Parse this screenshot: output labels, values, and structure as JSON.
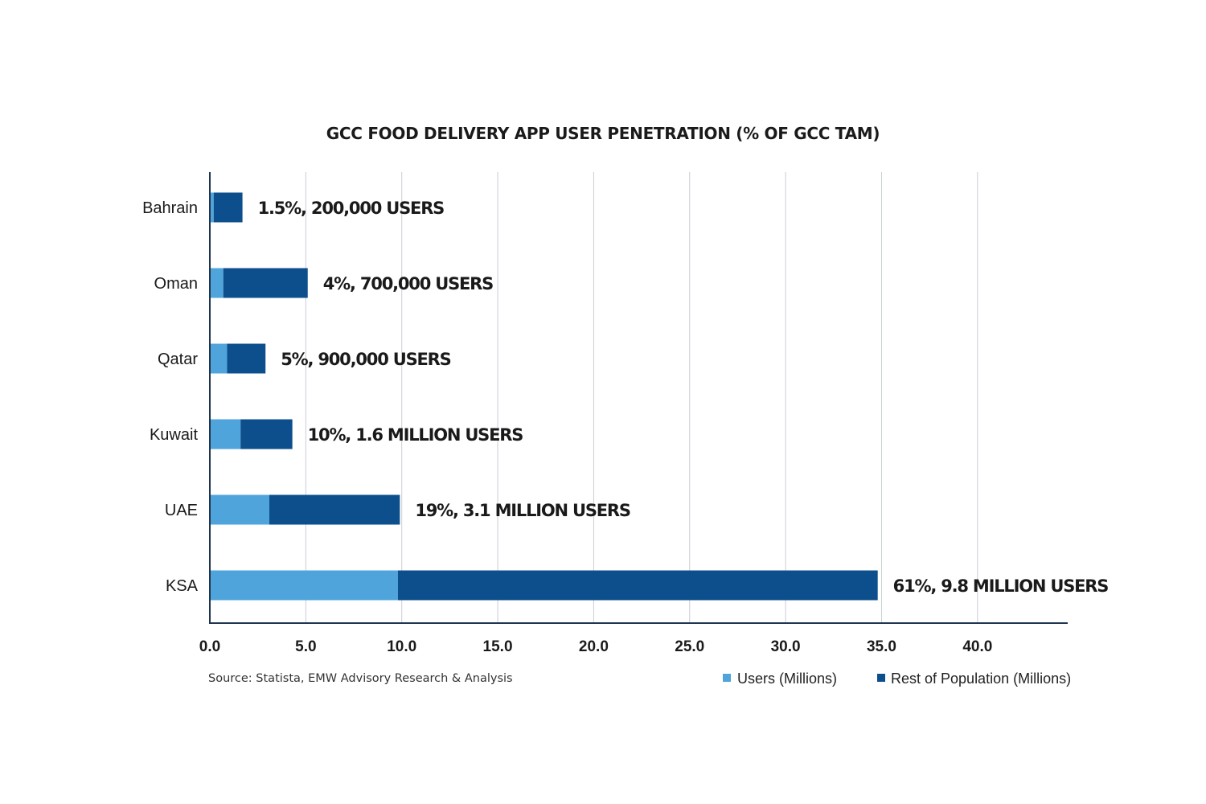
{
  "chart_data": {
    "type": "bar",
    "orientation": "horizontal",
    "stacked": true,
    "title": "GCC FOOD DELIVERY APP USER PENETRATION (% OF GCC TAM)",
    "categories": [
      "Bahrain",
      "Oman",
      "Qatar",
      "Kuwait",
      "UAE",
      "KSA"
    ],
    "series": [
      {
        "name": "Users (Millions)",
        "color": "#4ea4db",
        "values": [
          0.2,
          0.7,
          0.9,
          1.6,
          3.1,
          9.8
        ]
      },
      {
        "name": "Rest of Population (Millions)",
        "color": "#0c4f8c",
        "values": [
          1.5,
          4.4,
          2.0,
          2.7,
          6.8,
          25.0
        ]
      }
    ],
    "data_labels": [
      "1.5%, 200,000 USERS",
      "4%, 700,000 USERS",
      "5%, 900,000 USERS",
      "10%, 1.6 MILLION USERS",
      "19%, 3.1 MILLION USERS",
      "61%, 9.8 MILLION USERS"
    ],
    "xlim": [
      0,
      44.7
    ],
    "xticks": [
      0,
      5,
      10,
      15,
      20,
      25,
      30,
      35,
      40
    ],
    "xtick_labels": [
      "0.0",
      "5.0",
      "10.0",
      "15.0",
      "20.0",
      "25.0",
      "30.0",
      "35.0",
      "40.0"
    ],
    "grid": "vertical",
    "legend": "bottom-right",
    "xlabel": "",
    "ylabel": ""
  },
  "source": "Source: Statista, EMW Advisory Research & Analysis"
}
